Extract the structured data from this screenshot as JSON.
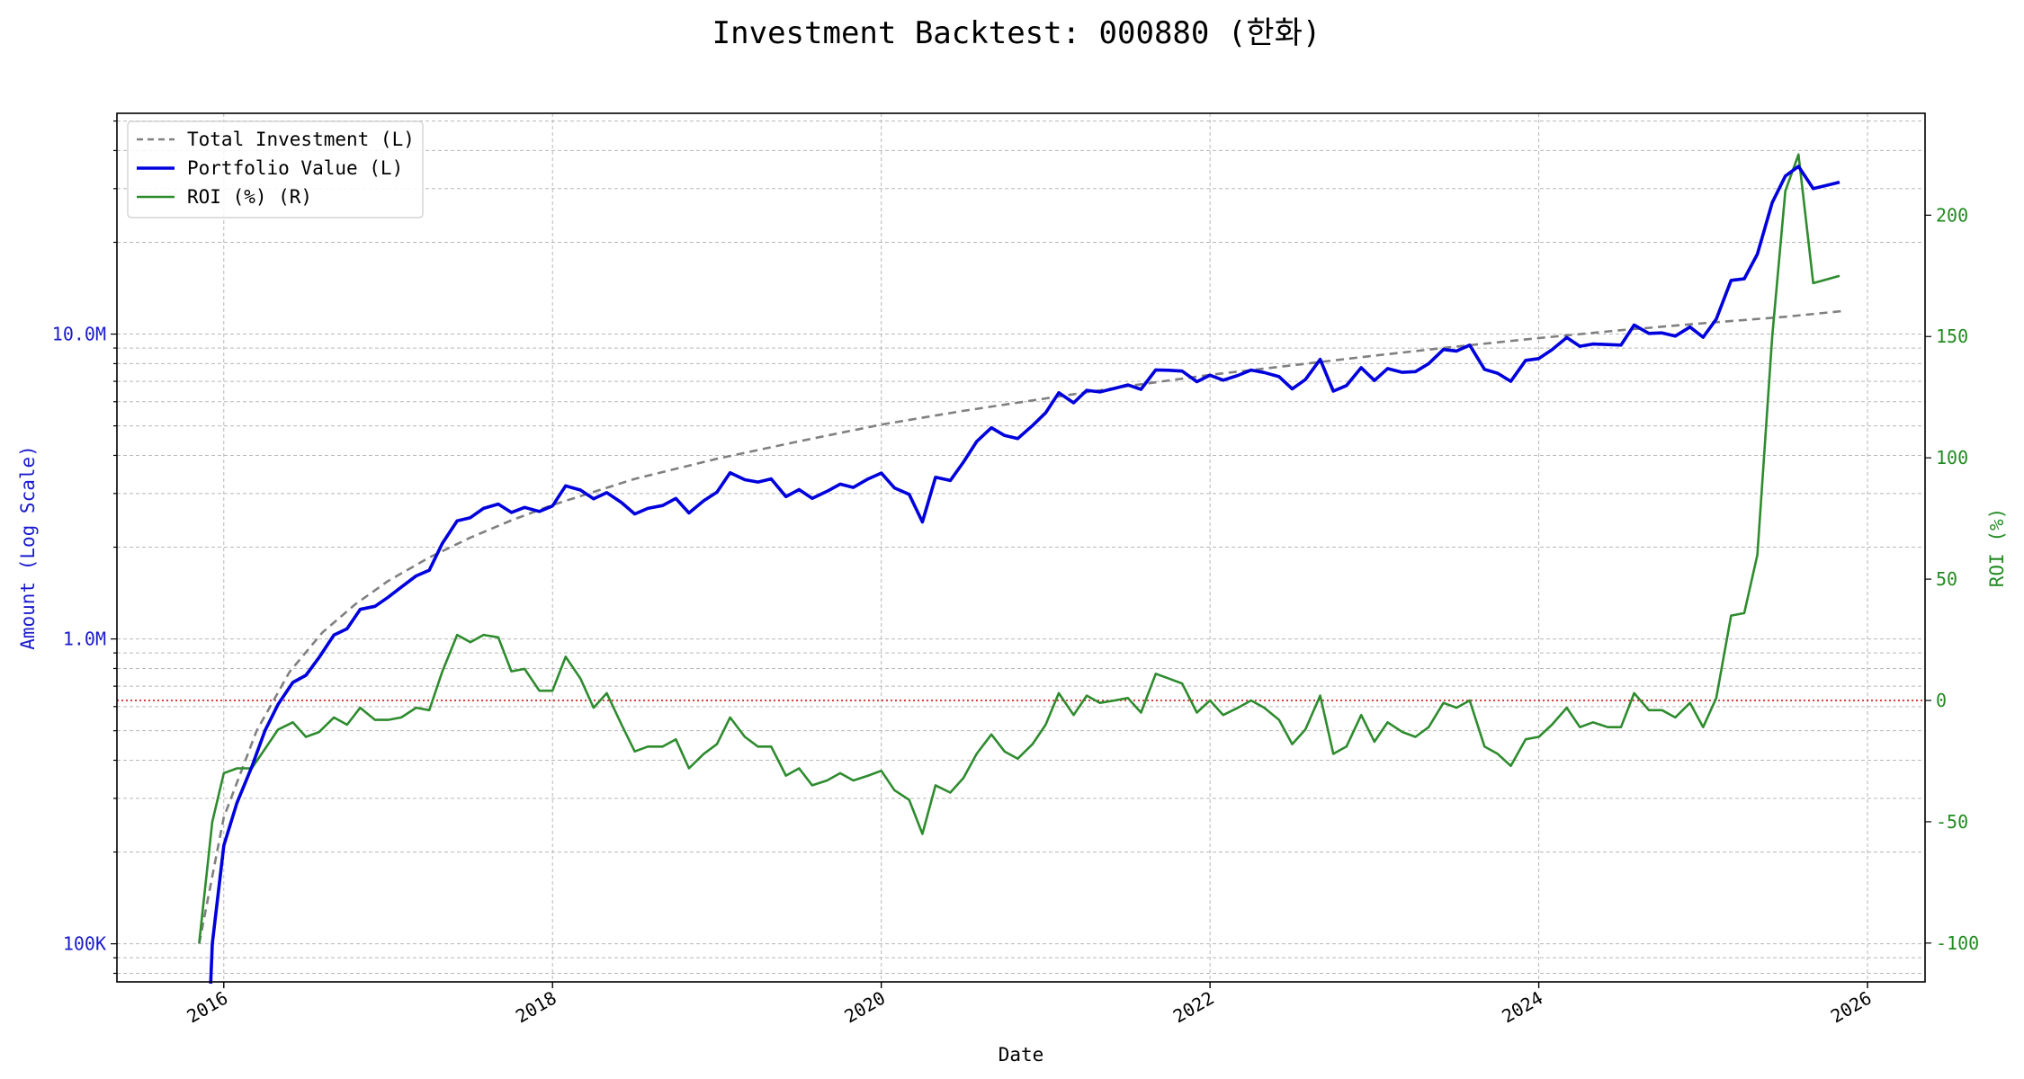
{
  "chart_data": {
    "type": "line",
    "title": "Investment Backtest: 000880 (한화)",
    "xlabel": "Date",
    "ylabel_left": "Amount (Log Scale)",
    "ylabel_right": "ROI (%)",
    "y_left_scale": "log",
    "y_left_lim": [
      75000,
      53000000
    ],
    "y_left_ticks": [
      {
        "value": 100000,
        "label": "100K"
      },
      {
        "value": 1000000,
        "label": "1.0M"
      },
      {
        "value": 10000000,
        "label": "10.0M"
      }
    ],
    "y_right_lim": [
      -116,
      242
    ],
    "y_right_ticks": [
      -100,
      -50,
      0,
      50,
      100,
      150,
      200
    ],
    "x_lim": [
      2015.35,
      2026.35
    ],
    "x_ticks": [
      "2016",
      "2018",
      "2020",
      "2022",
      "2024",
      "2026"
    ],
    "grid": true,
    "legend_position": "upper left",
    "colors": {
      "total_investment": "#808080",
      "portfolio_value": "#0000dd",
      "roi": "#2e8b2e",
      "zero_line": "#cc0000",
      "left_axis_text": "#1a1acc",
      "right_axis_text": "#228b22"
    },
    "legend": [
      {
        "label": "Total Investment (L)",
        "color": "#808080",
        "style": "dashed"
      },
      {
        "label": "Portfolio Value (L)",
        "color": "#0000dd",
        "style": "solid-thick"
      },
      {
        "label": "ROI (%) (R)",
        "color": "#2e8b2e",
        "style": "solid"
      }
    ],
    "series": [
      {
        "name": "Total Investment (L)",
        "axis": "left",
        "x": [
          2015.85,
          2016.0,
          2016.2,
          2016.4,
          2016.6,
          2016.8,
          2017.0,
          2017.25,
          2017.5,
          2017.75,
          2018.0,
          2018.5,
          2019.0,
          2019.5,
          2020.0,
          2020.5,
          2021.0,
          2021.5,
          2022.0,
          2022.5,
          2023.0,
          2023.5,
          2024.0,
          2024.5,
          2025.0,
          2025.5,
          2025.85
        ],
        "y": [
          100000,
          260000,
          500000,
          780000,
          1050000,
          1300000,
          1550000,
          1850000,
          2150000,
          2450000,
          2750000,
          3350000,
          3900000,
          4450000,
          5050000,
          5600000,
          6150000,
          6750000,
          7350000,
          7900000,
          8500000,
          9100000,
          9700000,
          10300000,
          10850000,
          11400000,
          11900000
        ]
      },
      {
        "name": "Portfolio Value (L)",
        "axis": "left",
        "x": [
          2015.92,
          2015.93,
          2016.0,
          2016.08,
          2016.17,
          2016.25,
          2016.33,
          2016.42,
          2016.5,
          2016.58,
          2016.67,
          2016.75,
          2016.83,
          2016.92,
          2017.0,
          2017.08,
          2017.17,
          2017.25,
          2017.33,
          2017.42,
          2017.5,
          2017.58,
          2017.67,
          2017.75,
          2017.83,
          2017.92,
          2018.0,
          2018.08,
          2018.17,
          2018.25,
          2018.33,
          2018.42,
          2018.5,
          2018.58,
          2018.67,
          2018.75,
          2018.83,
          2018.92,
          2019.0,
          2019.08,
          2019.17,
          2019.25,
          2019.33,
          2019.42,
          2019.5,
          2019.58,
          2019.67,
          2019.75,
          2019.83,
          2019.92,
          2020.0,
          2020.08,
          2020.17,
          2020.25,
          2020.33,
          2020.42,
          2020.5,
          2020.58,
          2020.67,
          2020.75,
          2020.83,
          2020.92,
          2021.0,
          2021.08,
          2021.17,
          2021.25,
          2021.33,
          2021.42,
          2021.5,
          2021.58,
          2021.67,
          2021.75,
          2021.83,
          2021.92,
          2022.0,
          2022.08,
          2022.17,
          2022.25,
          2022.33,
          2022.42,
          2022.5,
          2022.58,
          2022.67,
          2022.75,
          2022.83,
          2022.92,
          2023.0,
          2023.08,
          2023.17,
          2023.25,
          2023.33,
          2023.42,
          2023.5,
          2023.58,
          2023.67,
          2023.75,
          2023.83,
          2023.92,
          2024.0,
          2024.08,
          2024.17,
          2024.25,
          2024.33,
          2024.42,
          2024.5,
          2024.58,
          2024.67,
          2024.75,
          2024.83,
          2024.92,
          2025.0,
          2025.08,
          2025.17,
          2025.25,
          2025.33,
          2025.42,
          2025.5,
          2025.58,
          2025.67,
          2025.83
        ],
        "y": [
          70000,
          100000,
          210000,
          290000,
          380000,
          500000,
          610000,
          720000,
          760000,
          870000,
          1030000,
          1080000,
          1250000,
          1280000,
          1370000,
          1480000,
          1610000,
          1680000,
          2060000,
          2440000,
          2500000,
          2680000,
          2770000,
          2600000,
          2700000,
          2620000,
          2730000,
          3180000,
          3080000,
          2880000,
          3020000,
          2800000,
          2570000,
          2680000,
          2740000,
          2890000,
          2590000,
          2840000,
          3030000,
          3510000,
          3330000,
          3270000,
          3350000,
          2930000,
          3090000,
          2890000,
          3050000,
          3220000,
          3140000,
          3350000,
          3500000,
          3130000,
          2980000,
          2420000,
          3390000,
          3310000,
          3800000,
          4440000,
          4930000,
          4650000,
          4540000,
          5010000,
          5520000,
          6420000,
          5950000,
          6540000,
          6460000,
          6640000,
          6810000,
          6590000,
          7630000,
          7610000,
          7560000,
          6980000,
          7330000,
          7060000,
          7320000,
          7620000,
          7480000,
          7250000,
          6610000,
          7090000,
          8260000,
          6500000,
          6780000,
          7760000,
          7040000,
          7710000,
          7490000,
          7530000,
          8000000,
          8900000,
          8800000,
          9200000,
          7660000,
          7440000,
          7000000,
          8200000,
          8310000,
          8880000,
          9740000,
          9120000,
          9280000,
          9240000,
          9200000,
          10710000,
          10050000,
          10090000,
          9850000,
          10550000,
          9760000,
          11200000,
          15010000,
          15180000,
          18300000,
          27000000,
          33000000,
          35500000,
          30000000,
          31500000
        ]
      },
      {
        "name": "ROI (%) (R)",
        "axis": "right",
        "x": [
          2015.85,
          2015.93,
          2016.0,
          2016.08,
          2016.17,
          2016.25,
          2016.33,
          2016.42,
          2016.5,
          2016.58,
          2016.67,
          2016.75,
          2016.83,
          2016.92,
          2017.0,
          2017.08,
          2017.17,
          2017.25,
          2017.33,
          2017.42,
          2017.5,
          2017.58,
          2017.67,
          2017.75,
          2017.83,
          2017.92,
          2018.0,
          2018.08,
          2018.17,
          2018.25,
          2018.33,
          2018.42,
          2018.5,
          2018.58,
          2018.67,
          2018.75,
          2018.83,
          2018.92,
          2019.0,
          2019.08,
          2019.17,
          2019.25,
          2019.33,
          2019.42,
          2019.5,
          2019.58,
          2019.67,
          2019.75,
          2019.83,
          2019.92,
          2020.0,
          2020.08,
          2020.17,
          2020.25,
          2020.33,
          2020.42,
          2020.5,
          2020.58,
          2020.67,
          2020.75,
          2020.83,
          2020.92,
          2021.0,
          2021.08,
          2021.17,
          2021.25,
          2021.33,
          2021.42,
          2021.5,
          2021.58,
          2021.67,
          2021.75,
          2021.83,
          2021.92,
          2022.0,
          2022.08,
          2022.17,
          2022.25,
          2022.33,
          2022.42,
          2022.5,
          2022.58,
          2022.67,
          2022.75,
          2022.83,
          2022.92,
          2023.0,
          2023.08,
          2023.17,
          2023.25,
          2023.33,
          2023.42,
          2023.5,
          2023.58,
          2023.67,
          2023.75,
          2023.83,
          2023.92,
          2024.0,
          2024.08,
          2024.17,
          2024.25,
          2024.33,
          2024.42,
          2024.5,
          2024.58,
          2024.67,
          2024.75,
          2024.83,
          2024.92,
          2025.0,
          2025.08,
          2025.17,
          2025.25,
          2025.33,
          2025.42,
          2025.5,
          2025.58,
          2025.67,
          2025.83
        ],
        "y": [
          -100,
          -50,
          -30,
          -28,
          -28,
          -20,
          -12,
          -9,
          -15,
          -13,
          -7,
          -10,
          -3,
          -8,
          -8,
          -7,
          -3,
          -4,
          12,
          27,
          24,
          27,
          26,
          12,
          13,
          4,
          4,
          18,
          9,
          -3,
          3,
          -10,
          -21,
          -19,
          -19,
          -16,
          -28,
          -22,
          -18,
          -7,
          -15,
          -19,
          -19,
          -31,
          -28,
          -35,
          -33,
          -30,
          -33,
          -31,
          -29,
          -37,
          -41,
          -55,
          -35,
          -38,
          -32,
          -22,
          -14,
          -21,
          -24,
          -18,
          -10,
          3,
          -6,
          2,
          -1,
          0,
          1,
          -5,
          11,
          9,
          7,
          -5,
          0,
          -6,
          -3,
          0,
          -3,
          -8,
          -18,
          -12,
          2,
          -22,
          -19,
          -6,
          -17,
          -9,
          -13,
          -15,
          -11,
          -1,
          -3,
          0,
          -19,
          -22,
          -27,
          -16,
          -15,
          -10,
          -3,
          -11,
          -9,
          -11,
          -11,
          3,
          -4,
          -4,
          -7,
          -1,
          -11,
          1,
          35,
          36,
          60,
          150,
          210,
          225,
          172,
          175
        ]
      }
    ]
  }
}
